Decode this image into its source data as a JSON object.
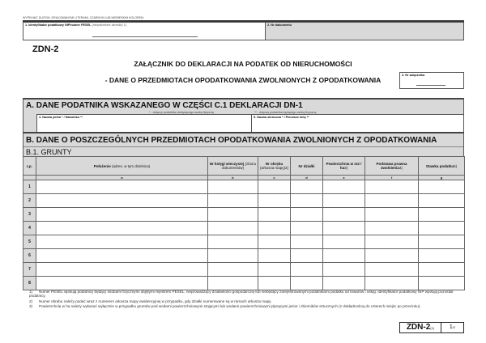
{
  "instruction": "WYPEŁNIĆ DUŻYMI, DRUKOWANYMI LITERAMI, CZARNYM LUB NIEBIESKIM KOLOREM.",
  "field1": {
    "label": "1. Identyfikator podatkowy NIP/numer PESEL",
    "hint": "(niepotrzebne skreślić)",
    "sup": "1)"
  },
  "field2": {
    "label": "2. Nr dokumentu"
  },
  "form_code": "ZDN-2",
  "title1": "ZAŁĄCZNIK DO DEKLARACJI NA PODATEK OD NIERUCHOMOŚCI",
  "title2": "- DANE O PRZEDMIOTACH OPODATKOWANIA ZWOLNIONYCH Z OPODATKOWANIA",
  "field3": {
    "label": "3. Nr załącznika"
  },
  "sectionA": {
    "title": "A.  DANE PODATNIKA WSKAZANEGO W CZĘŚCI C.1 DEKLARACJI DN-1",
    "note1": "* - dotyczy podatnika niebędącego osobą fizyczną",
    "note2": "** - dotyczy podatnika będącego osobą fizyczną",
    "field4": "4. Nazwa pełna * / Nazwisko **",
    "field5": "5. Nazwa skrócona * / Pierwsze imię **"
  },
  "sectionB": {
    "title": "B.  DANE O POSZCZEGÓLNYCH PRZEDMIOTACH OPODATKOWANIA ZWOLNIONYCH Z OPODATKOWANIA",
    "sub": "B.1.  GRUNTY"
  },
  "table": {
    "headers": [
      {
        "bold": "Lp.",
        "normal": ""
      },
      {
        "bold": "Położenie",
        "normal": " (adres, w tym dzielnica)"
      },
      {
        "bold": "Nr księgi wieczystej",
        "normal": " (zbioru dokumentów)"
      },
      {
        "bold": "Nr obrębu",
        "normal": " (arkusza mapy)2)"
      },
      {
        "bold": "Nr działki",
        "normal": ""
      },
      {
        "bold": "Powierzchnia w m2 / ha",
        "normal": "3)"
      },
      {
        "bold": "Podstawa prawna zwolnienia",
        "normal": "4)"
      },
      {
        "bold": "Stawka podatku",
        "normal": "5)"
      }
    ],
    "letters": [
      "",
      "a",
      "b",
      "c",
      "d",
      "e",
      "f",
      "g"
    ],
    "rows": [
      "1",
      "2",
      "3",
      "4",
      "5",
      "6",
      "7",
      "8"
    ]
  },
  "footnotes": [
    {
      "n": "1)",
      "text": "Numer PESEL wpisują podatnicy będący osobami fizycznymi objętymi rejestrem PESEL, nieprowadzący działalności gospodarczej lub niebędący zarejestrowanymi podatnikami podatku od towarów i usług. Identyfikator podatkowy NIP wpisują pozostali podatnicy."
    },
    {
      "n": "2)",
      "text": "Numer obrębu należy podać wraz z numerem arkusza mapy ewidencyjnej w przypadku, gdy działki numerowane są w ramach arkusza mapy."
    },
    {
      "n": "3)",
      "text": "Powierzchnię w ha należy wykazać wyłącznie w przypadku gruntów pod wodami powierzchniowymi stojącymi lub wodami powierzchniowymi płynącymi jezior i zbiorników sztucznych (z dokładnością do czterech miejsc po przecinku)."
    }
  ],
  "footer": {
    "code": "ZDN-2",
    "version": "(1)",
    "page": "1",
    "pages": "/2"
  }
}
